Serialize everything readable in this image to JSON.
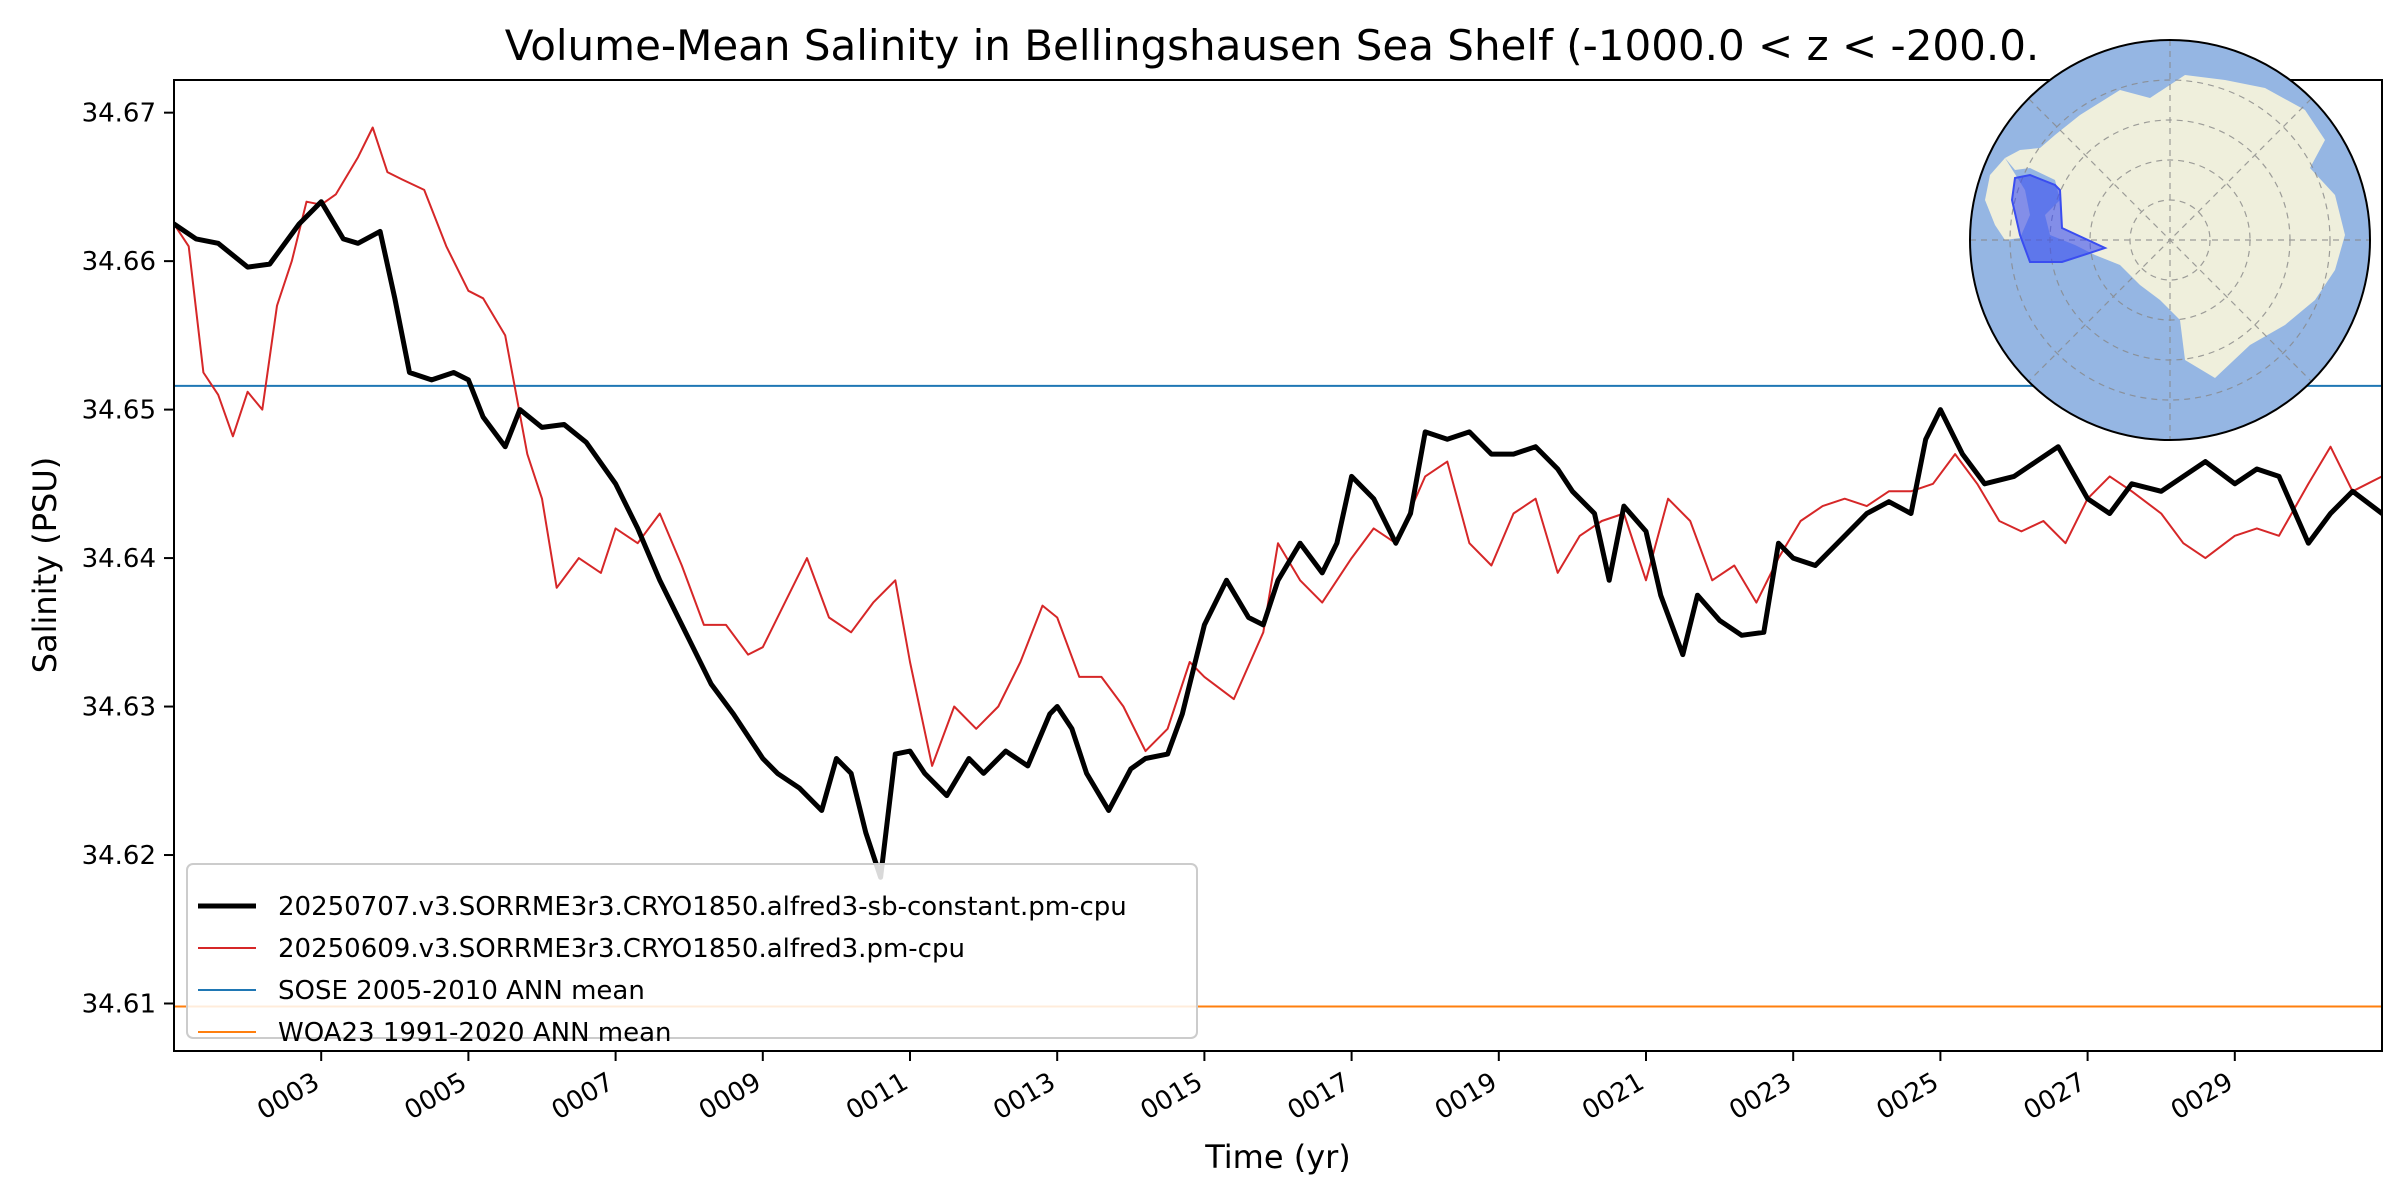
{
  "chart_data": {
    "type": "line",
    "title": "Volume-Mean Salinity in Bellingshausen Sea Shelf (-1000.0 < z < -200.0.",
    "xlabel": "Time (yr)",
    "ylabel": "Salinity (PSU)",
    "xlim": [
      1.0,
      31.0
    ],
    "ylim": [
      34.6068,
      34.6722
    ],
    "x_ticks": [
      3,
      5,
      7,
      9,
      11,
      13,
      15,
      17,
      19,
      21,
      23,
      25,
      27,
      29
    ],
    "x_tick_labels": [
      "0003",
      "0005",
      "0007",
      "0009",
      "0011",
      "0013",
      "0015",
      "0017",
      "0019",
      "0021",
      "0023",
      "0025",
      "0027",
      "0029"
    ],
    "y_ticks": [
      34.61,
      34.62,
      34.63,
      34.64,
      34.65,
      34.66,
      34.67
    ],
    "y_tick_labels": [
      "34.61",
      "34.62",
      "34.63",
      "34.64",
      "34.65",
      "34.66",
      "34.67"
    ],
    "grid": false,
    "legend_position": "lower-left",
    "inset": "south-polar-map",
    "colors": {
      "inset_ocean": "#95b6e3",
      "inset_land": "#efefdc",
      "inset_region": "#3a4df0"
    },
    "series": [
      {
        "name": "20250707.v3.SORRME3r3.CRYO1850.alfred3-sb-constant.pm-cpu",
        "color": "#000000",
        "linewidth": 5,
        "x": [
          1.0,
          1.3,
          1.6,
          2.0,
          2.3,
          2.7,
          3.0,
          3.3,
          3.5,
          3.8,
          4.0,
          4.2,
          4.5,
          4.8,
          5.0,
          5.2,
          5.5,
          5.7,
          6.0,
          6.3,
          6.6,
          7.0,
          7.3,
          7.6,
          8.0,
          8.3,
          8.6,
          9.0,
          9.2,
          9.5,
          9.8,
          10.0,
          10.2,
          10.4,
          10.6,
          10.8,
          11.0,
          11.2,
          11.5,
          11.8,
          12.0,
          12.3,
          12.6,
          12.9,
          13.0,
          13.2,
          13.4,
          13.7,
          14.0,
          14.2,
          14.5,
          14.7,
          15.0,
          15.3,
          15.6,
          15.8,
          16.0,
          16.3,
          16.6,
          16.8,
          17.0,
          17.3,
          17.6,
          17.8,
          18.0,
          18.3,
          18.6,
          18.9,
          19.2,
          19.5,
          19.8,
          20.0,
          20.3,
          20.5,
          20.7,
          21.0,
          21.2,
          21.5,
          21.7,
          22.0,
          22.3,
          22.6,
          22.8,
          23.0,
          23.3,
          23.6,
          24.0,
          24.3,
          24.6,
          24.8,
          25.0,
          25.3,
          25.6,
          26.0,
          26.3,
          26.6,
          27.0,
          27.3,
          27.6,
          28.0,
          28.3,
          28.6,
          29.0,
          29.3,
          29.6,
          30.0,
          30.3,
          30.6,
          31.0
        ],
        "y": [
          34.6625,
          34.6615,
          34.6612,
          34.6596,
          34.6598,
          34.6625,
          34.664,
          34.6615,
          34.6612,
          34.662,
          34.6575,
          34.6525,
          34.652,
          34.6525,
          34.652,
          34.6495,
          34.6475,
          34.65,
          34.6488,
          34.649,
          34.6478,
          34.645,
          34.642,
          34.6385,
          34.6345,
          34.6315,
          34.6295,
          34.6265,
          34.6255,
          34.6245,
          34.623,
          34.6265,
          34.6255,
          34.6215,
          34.6185,
          34.6268,
          34.627,
          34.6255,
          34.624,
          34.6265,
          34.6255,
          34.627,
          34.626,
          34.6295,
          34.63,
          34.6285,
          34.6255,
          34.623,
          34.6258,
          34.6265,
          34.6268,
          34.6295,
          34.6355,
          34.6385,
          34.636,
          34.6355,
          34.6385,
          34.641,
          34.639,
          34.641,
          34.6455,
          34.644,
          34.641,
          34.643,
          34.6485,
          34.648,
          34.6485,
          34.647,
          34.647,
          34.6475,
          34.646,
          34.6445,
          34.643,
          34.6385,
          34.6435,
          34.6418,
          34.6375,
          34.6335,
          34.6375,
          34.6358,
          34.6348,
          34.635,
          34.641,
          34.64,
          34.6395,
          34.641,
          34.643,
          34.6438,
          34.643,
          34.648,
          34.65,
          34.647,
          34.645,
          34.6455,
          34.6465,
          34.6475,
          34.644,
          34.643,
          34.645,
          34.6445,
          34.6455,
          34.6465,
          34.645,
          34.646,
          34.6455,
          34.641,
          34.643,
          34.6445,
          34.643
        ]
      },
      {
        "name": "20250609.v3.SORRME3r3.CRYO1850.alfred3.pm-cpu",
        "color": "#d62728",
        "linewidth": 2,
        "x": [
          1.0,
          1.2,
          1.4,
          1.6,
          1.8,
          2.0,
          2.2,
          2.4,
          2.6,
          2.8,
          3.0,
          3.2,
          3.5,
          3.7,
          3.9,
          4.1,
          4.4,
          4.7,
          5.0,
          5.2,
          5.5,
          5.8,
          6.0,
          6.2,
          6.5,
          6.8,
          7.0,
          7.3,
          7.6,
          7.9,
          8.2,
          8.5,
          8.8,
          9.0,
          9.3,
          9.6,
          9.9,
          10.2,
          10.5,
          10.8,
          11.0,
          11.3,
          11.6,
          11.9,
          12.2,
          12.5,
          12.8,
          13.0,
          13.3,
          13.6,
          13.9,
          14.2,
          14.5,
          14.8,
          15.0,
          15.4,
          15.8,
          16.0,
          16.3,
          16.6,
          17.0,
          17.3,
          17.6,
          18.0,
          18.3,
          18.6,
          18.9,
          19.2,
          19.5,
          19.8,
          20.1,
          20.4,
          20.7,
          21.0,
          21.3,
          21.6,
          21.9,
          22.2,
          22.5,
          22.8,
          23.1,
          23.4,
          23.7,
          24.0,
          24.3,
          24.6,
          24.9,
          25.2,
          25.5,
          25.8,
          26.1,
          26.4,
          26.7,
          27.0,
          27.3,
          27.6,
          28.0,
          28.3,
          28.6,
          29.0,
          29.3,
          29.6,
          30.0,
          30.3,
          30.6,
          31.0
        ],
        "y": [
          34.6625,
          34.661,
          34.6525,
          34.651,
          34.6482,
          34.6512,
          34.65,
          34.657,
          34.66,
          34.664,
          34.6638,
          34.6645,
          34.667,
          34.669,
          34.666,
          34.6655,
          34.6648,
          34.661,
          34.658,
          34.6575,
          34.655,
          34.647,
          34.644,
          34.638,
          34.64,
          34.639,
          34.642,
          34.641,
          34.643,
          34.6395,
          34.6355,
          34.6355,
          34.6335,
          34.634,
          34.637,
          34.64,
          34.636,
          34.635,
          34.637,
          34.6385,
          34.633,
          34.626,
          34.63,
          34.6285,
          34.63,
          34.633,
          34.6368,
          34.636,
          34.632,
          34.632,
          34.63,
          34.627,
          34.6285,
          34.633,
          34.632,
          34.6305,
          34.635,
          34.641,
          34.6385,
          34.637,
          34.64,
          34.642,
          34.641,
          34.6455,
          34.6465,
          34.641,
          34.6395,
          34.643,
          34.644,
          34.639,
          34.6415,
          34.6425,
          34.643,
          34.6385,
          34.644,
          34.6425,
          34.6385,
          34.6395,
          34.637,
          34.64,
          34.6425,
          34.6435,
          34.644,
          34.6435,
          34.6445,
          34.6445,
          34.645,
          34.647,
          34.645,
          34.6425,
          34.6418,
          34.6425,
          34.641,
          34.644,
          34.6455,
          34.6445,
          34.643,
          34.641,
          34.64,
          34.6415,
          34.642,
          34.6415,
          34.645,
          34.6475,
          34.6445,
          34.6455
        ]
      },
      {
        "name": "SOSE 2005-2010 ANN mean",
        "color": "#1f77b4",
        "linewidth": 2,
        "x": [
          1.0,
          31.0
        ],
        "y": [
          34.6516,
          34.6516
        ]
      },
      {
        "name": "WOA23 1991-2020 ANN mean",
        "color": "#ff7f0e",
        "linewidth": 2,
        "x": [
          1.0,
          31.0
        ],
        "y": [
          34.6098,
          34.6098
        ]
      }
    ]
  }
}
